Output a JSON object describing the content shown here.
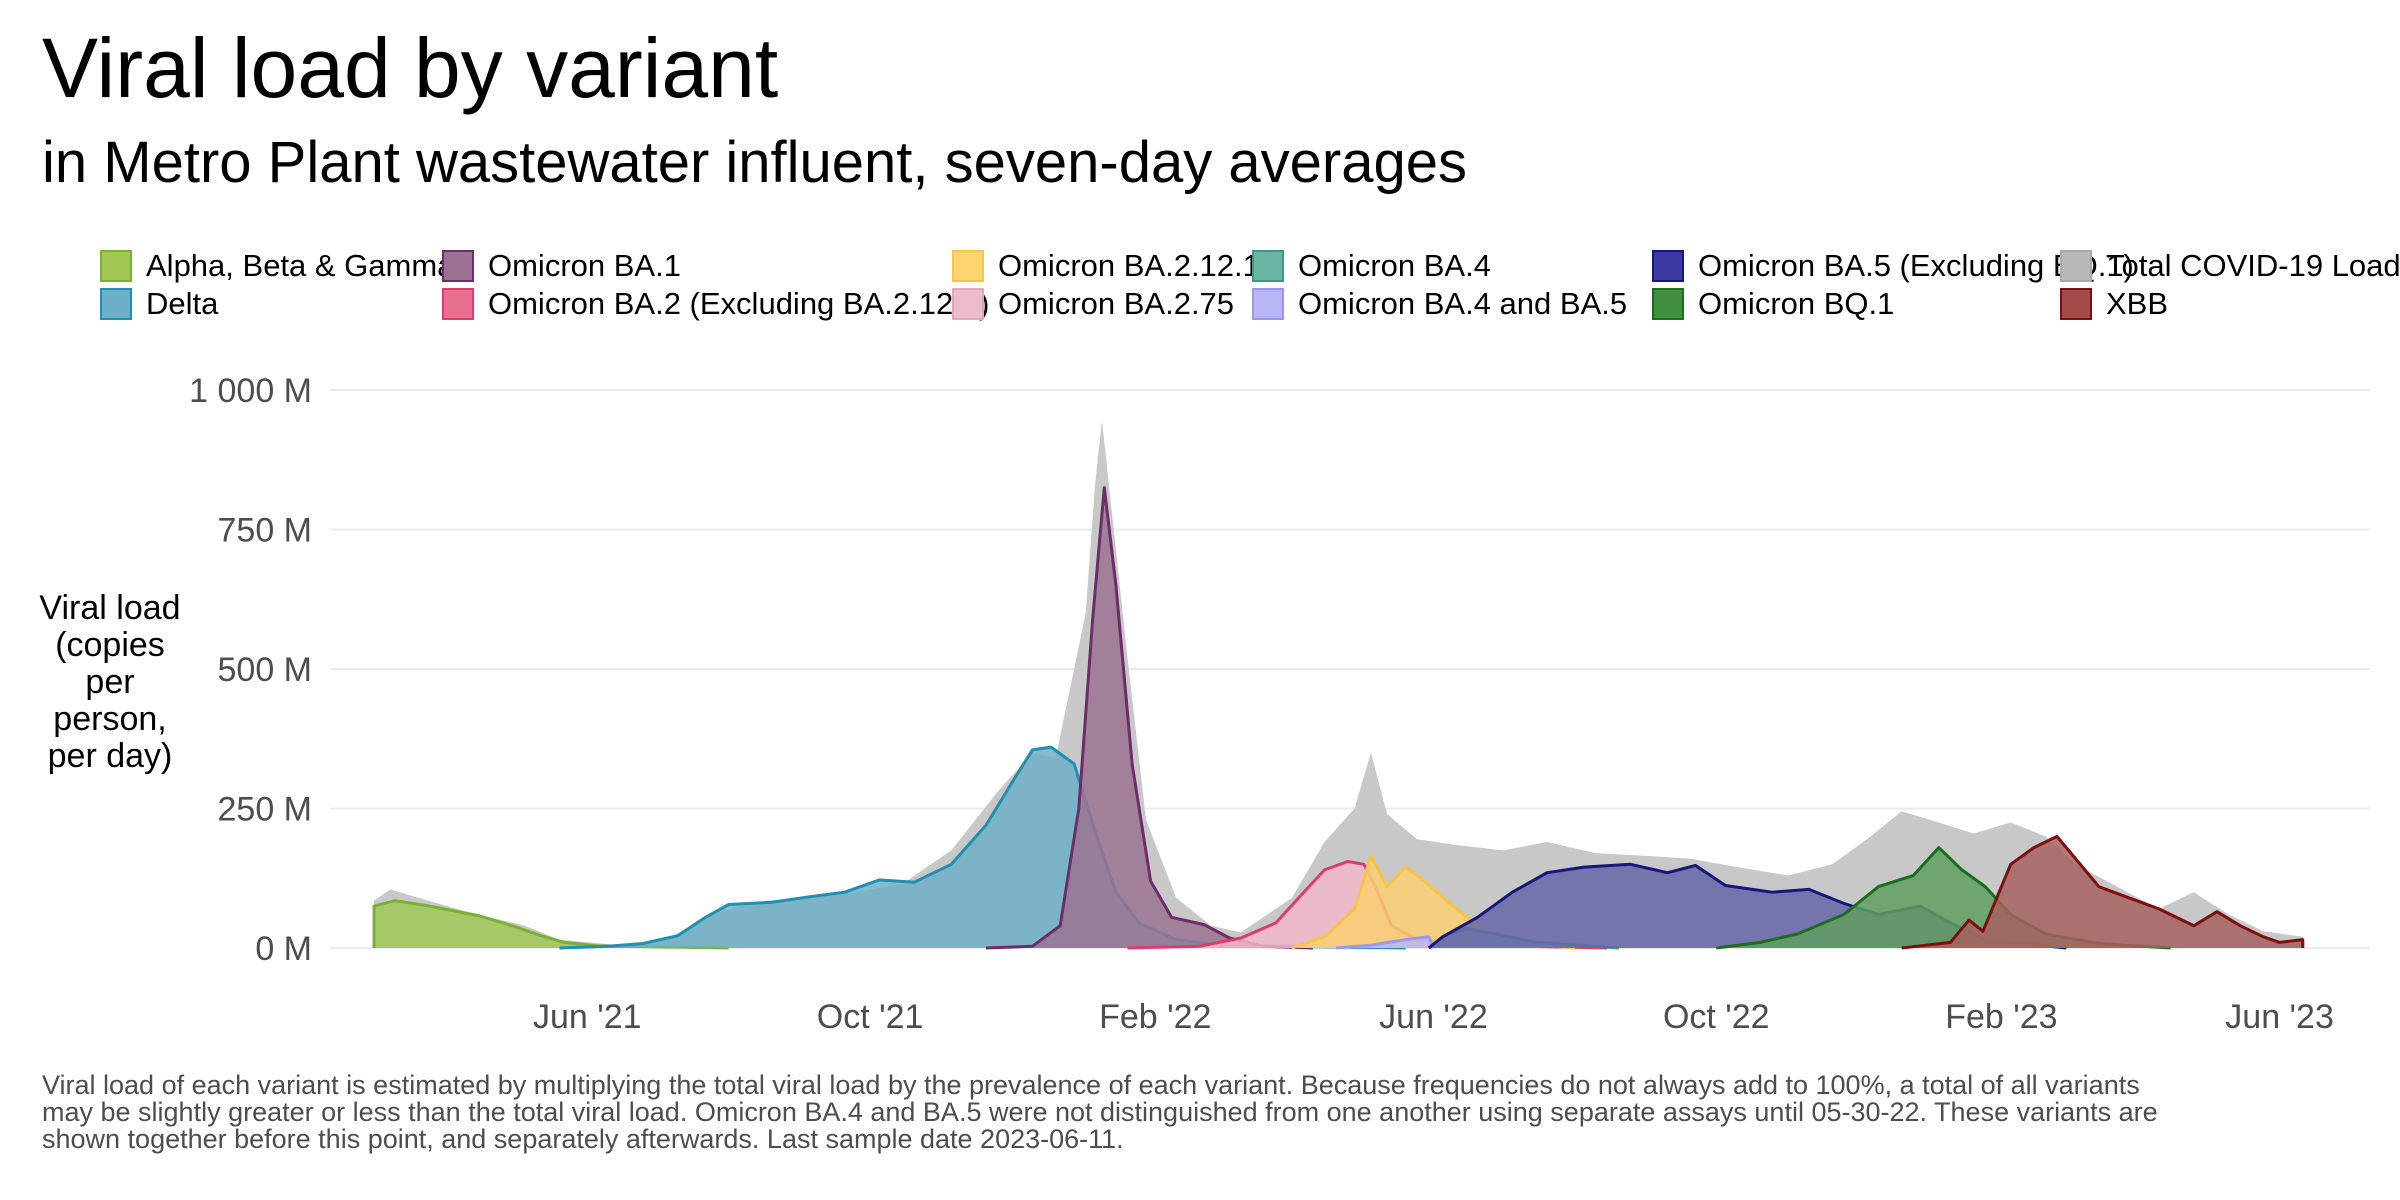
{
  "chart_data": {
    "type": "area",
    "title": "Viral load by variant",
    "subtitle": "in Metro Plant wastewater influent, seven-day averages",
    "ylabel": "Viral load\n(copies\nper\nperson,\nper day)",
    "xlabel": "",
    "ylim": [
      -40,
      1000
    ],
    "xlim": [
      "2021-02-10",
      "2023-07-10"
    ],
    "y_ticks": [
      0,
      250,
      500,
      750,
      1000
    ],
    "y_tick_labels": [
      "0 M",
      "250 M",
      "500 M",
      "750 M",
      "1 000 M"
    ],
    "x_ticks": [
      "2021-06-01",
      "2021-10-01",
      "2022-02-01",
      "2022-06-01",
      "2022-10-01",
      "2023-02-01",
      "2023-06-01"
    ],
    "x_tick_labels": [
      "Jun '21",
      "Oct '21",
      "Feb '22",
      "Jun '22",
      "Oct '22",
      "Feb '23",
      "Jun '23"
    ],
    "grid": true,
    "legend_position": "top",
    "series": [
      {
        "name": "Total COVID-19 Load",
        "color": "#c8c8c8",
        "stroke": "#c8c8c8",
        "points": [
          [
            "2021-03-01",
            85
          ],
          [
            "2021-03-08",
            105
          ],
          [
            "2021-03-20",
            90
          ],
          [
            "2021-04-10",
            65
          ],
          [
            "2021-05-05",
            40
          ],
          [
            "2021-05-20",
            15
          ],
          [
            "2021-06-15",
            5
          ],
          [
            "2021-07-05",
            15
          ],
          [
            "2021-07-25",
            60
          ],
          [
            "2021-08-10",
            80
          ],
          [
            "2021-09-01",
            92
          ],
          [
            "2021-09-25",
            100
          ],
          [
            "2021-10-15",
            115
          ],
          [
            "2021-11-05",
            175
          ],
          [
            "2021-11-25",
            280
          ],
          [
            "2021-12-10",
            350
          ],
          [
            "2021-12-20",
            340
          ],
          [
            "2022-01-02",
            600
          ],
          [
            "2022-01-06",
            830
          ],
          [
            "2022-01-09",
            945
          ],
          [
            "2022-01-12",
            830
          ],
          [
            "2022-01-20",
            520
          ],
          [
            "2022-01-28",
            230
          ],
          [
            "2022-02-10",
            90
          ],
          [
            "2022-02-25",
            40
          ],
          [
            "2022-03-10",
            28
          ],
          [
            "2022-04-01",
            90
          ],
          [
            "2022-04-15",
            190
          ],
          [
            "2022-04-28",
            250
          ],
          [
            "2022-05-05",
            350
          ],
          [
            "2022-05-12",
            240
          ],
          [
            "2022-05-25",
            195
          ],
          [
            "2022-06-10",
            185
          ],
          [
            "2022-07-01",
            175
          ],
          [
            "2022-07-20",
            190
          ],
          [
            "2022-08-10",
            170
          ],
          [
            "2022-09-01",
            165
          ],
          [
            "2022-09-20",
            160
          ],
          [
            "2022-10-10",
            145
          ],
          [
            "2022-11-01",
            130
          ],
          [
            "2022-11-20",
            150
          ],
          [
            "2022-12-05",
            195
          ],
          [
            "2022-12-20",
            245
          ],
          [
            "2023-01-05",
            225
          ],
          [
            "2023-01-20",
            205
          ],
          [
            "2023-02-05",
            225
          ],
          [
            "2023-02-20",
            200
          ],
          [
            "2023-03-05",
            150
          ],
          [
            "2023-03-25",
            105
          ],
          [
            "2023-04-10",
            70
          ],
          [
            "2023-04-25",
            100
          ],
          [
            "2023-05-10",
            60
          ],
          [
            "2023-05-25",
            30
          ],
          [
            "2023-06-11",
            20
          ]
        ]
      },
      {
        "name": "Alpha, Beta & Gamma",
        "color": "#a1c855",
        "stroke": "#79b135",
        "points": [
          [
            "2021-03-01",
            0
          ],
          [
            "2021-03-01",
            75
          ],
          [
            "2021-03-10",
            85
          ],
          [
            "2021-03-25",
            75
          ],
          [
            "2021-04-15",
            58
          ],
          [
            "2021-05-01",
            38
          ],
          [
            "2021-05-12",
            22
          ],
          [
            "2021-05-22",
            10
          ],
          [
            "2021-06-05",
            4
          ],
          [
            "2021-07-01",
            2
          ],
          [
            "2021-08-01",
            0
          ]
        ]
      },
      {
        "name": "Delta",
        "color": "#6fafc5",
        "stroke": "#1f8fb3",
        "points": [
          [
            "2021-05-20",
            0
          ],
          [
            "2021-06-10",
            3
          ],
          [
            "2021-06-25",
            8
          ],
          [
            "2021-07-10",
            22
          ],
          [
            "2021-07-22",
            55
          ],
          [
            "2021-08-01",
            78
          ],
          [
            "2021-08-20",
            82
          ],
          [
            "2021-09-05",
            92
          ],
          [
            "2021-09-20",
            100
          ],
          [
            "2021-10-05",
            122
          ],
          [
            "2021-10-20",
            118
          ],
          [
            "2021-11-05",
            150
          ],
          [
            "2021-11-20",
            220
          ],
          [
            "2021-12-01",
            295
          ],
          [
            "2021-12-10",
            355
          ],
          [
            "2021-12-18",
            360
          ],
          [
            "2021-12-28",
            330
          ],
          [
            "2022-01-06",
            210
          ],
          [
            "2022-01-15",
            100
          ],
          [
            "2022-01-25",
            45
          ],
          [
            "2022-02-10",
            15
          ],
          [
            "2022-03-01",
            5
          ],
          [
            "2022-04-15",
            2
          ],
          [
            "2022-05-20",
            0
          ]
        ]
      },
      {
        "name": "Omicron BA.1",
        "color": "#9b7392",
        "stroke": "#6c2d68",
        "points": [
          [
            "2021-11-20",
            0
          ],
          [
            "2021-12-10",
            3
          ],
          [
            "2021-12-22",
            40
          ],
          [
            "2021-12-30",
            250
          ],
          [
            "2022-01-05",
            590
          ],
          [
            "2022-01-10",
            825
          ],
          [
            "2022-01-15",
            650
          ],
          [
            "2022-01-22",
            330
          ],
          [
            "2022-01-30",
            120
          ],
          [
            "2022-02-08",
            55
          ],
          [
            "2022-02-22",
            42
          ],
          [
            "2022-03-05",
            18
          ],
          [
            "2022-03-20",
            3
          ],
          [
            "2022-04-10",
            0
          ]
        ]
      },
      {
        "name": "Omicron BA.2 (Excluding BA.2.12.1)",
        "color": "#f0b7c9",
        "stroke": "#dc3b6c",
        "points": [
          [
            "2022-01-20",
            0
          ],
          [
            "2022-02-20",
            3
          ],
          [
            "2022-03-10",
            18
          ],
          [
            "2022-03-25",
            45
          ],
          [
            "2022-04-05",
            95
          ],
          [
            "2022-04-15",
            140
          ],
          [
            "2022-04-25",
            155
          ],
          [
            "2022-05-02",
            150
          ],
          [
            "2022-05-07",
            110
          ],
          [
            "2022-05-14",
            40
          ],
          [
            "2022-05-25",
            15
          ],
          [
            "2022-06-20",
            5
          ],
          [
            "2022-08-15",
            0
          ]
        ]
      },
      {
        "name": "Omicron BA.2.12.1",
        "color": "#f9cf71",
        "stroke": "#f7c447",
        "points": [
          [
            "2022-04-01",
            0
          ],
          [
            "2022-04-15",
            20
          ],
          [
            "2022-04-28",
            70
          ],
          [
            "2022-05-05",
            165
          ],
          [
            "2022-05-12",
            110
          ],
          [
            "2022-05-20",
            145
          ],
          [
            "2022-05-28",
            120
          ],
          [
            "2022-06-08",
            80
          ],
          [
            "2022-06-20",
            40
          ],
          [
            "2022-07-05",
            10
          ],
          [
            "2022-08-01",
            0
          ]
        ]
      },
      {
        "name": "Omicron BA.4",
        "color": "#7dbfb0",
        "stroke": "#3c9885",
        "points": [
          [
            "2022-05-30",
            0
          ],
          [
            "2022-06-05",
            20
          ],
          [
            "2022-06-15",
            35
          ],
          [
            "2022-06-28",
            25
          ],
          [
            "2022-07-15",
            10
          ],
          [
            "2022-08-20",
            0
          ]
        ]
      },
      {
        "name": "Omicron BA.4 and BA.5",
        "color": "#b9b6f5",
        "stroke": "#9b96f0",
        "points": [
          [
            "2022-04-20",
            0
          ],
          [
            "2022-05-05",
            5
          ],
          [
            "2022-05-20",
            15
          ],
          [
            "2022-05-30",
            20
          ],
          [
            "2022-06-01",
            0
          ]
        ]
      },
      {
        "name": "Omicron BA.5 (Excluding BQ.1)",
        "color": "#6665a8",
        "stroke": "#16167d",
        "points": [
          [
            "2022-05-30",
            0
          ],
          [
            "2022-06-05",
            20
          ],
          [
            "2022-06-20",
            55
          ],
          [
            "2022-07-05",
            100
          ],
          [
            "2022-07-20",
            135
          ],
          [
            "2022-08-05",
            145
          ],
          [
            "2022-08-25",
            150
          ],
          [
            "2022-09-10",
            135
          ],
          [
            "2022-09-22",
            148
          ],
          [
            "2022-10-05",
            112
          ],
          [
            "2022-10-25",
            100
          ],
          [
            "2022-11-10",
            105
          ],
          [
            "2022-11-25",
            80
          ],
          [
            "2022-12-10",
            60
          ],
          [
            "2022-12-28",
            75
          ],
          [
            "2023-01-10",
            45
          ],
          [
            "2023-01-25",
            15
          ],
          [
            "2023-03-01",
            0
          ]
        ]
      },
      {
        "name": "Omicron BQ.1",
        "color": "#5f9f5f",
        "stroke": "#1b6e1b",
        "points": [
          [
            "2022-10-01",
            0
          ],
          [
            "2022-10-20",
            10
          ],
          [
            "2022-11-05",
            25
          ],
          [
            "2022-11-25",
            60
          ],
          [
            "2022-12-10",
            110
          ],
          [
            "2022-12-25",
            130
          ],
          [
            "2023-01-05",
            180
          ],
          [
            "2023-01-15",
            140
          ],
          [
            "2023-01-25",
            110
          ],
          [
            "2023-02-05",
            60
          ],
          [
            "2023-02-20",
            25
          ],
          [
            "2023-03-15",
            8
          ],
          [
            "2023-04-15",
            0
          ]
        ]
      },
      {
        "name": "XBB",
        "color": "#a66060",
        "stroke": "#7d0f0f",
        "points": [
          [
            "2022-12-20",
            0
          ],
          [
            "2023-01-10",
            10
          ],
          [
            "2023-01-18",
            50
          ],
          [
            "2023-01-24",
            30
          ],
          [
            "2023-01-30",
            90
          ],
          [
            "2023-02-05",
            150
          ],
          [
            "2023-02-15",
            180
          ],
          [
            "2023-02-25",
            200
          ],
          [
            "2023-03-05",
            160
          ],
          [
            "2023-03-15",
            110
          ],
          [
            "2023-03-28",
            90
          ],
          [
            "2023-04-10",
            70
          ],
          [
            "2023-04-25",
            40
          ],
          [
            "2023-05-05",
            65
          ],
          [
            "2023-05-15",
            40
          ],
          [
            "2023-05-25",
            20
          ],
          [
            "2023-06-01",
            10
          ],
          [
            "2023-06-11",
            15
          ],
          [
            "2023-06-11",
            0
          ]
        ]
      }
    ]
  },
  "legend": [
    {
      "label": "Alpha, Beta & Gamma",
      "color": "#a1c855",
      "stroke": "#79b135"
    },
    {
      "label": "Delta",
      "color": "#6fafc5",
      "stroke": "#1f8fb3"
    },
    {
      "label": "Omicron BA.1",
      "color": "#9b7392",
      "stroke": "#6c2d68"
    },
    {
      "label": "Omicron BA.2 (Excluding BA.2.12.1)",
      "color": "#e8708f",
      "stroke": "#dc3b6c"
    },
    {
      "label": "Omicron BA.2.12.1",
      "color": "#fcd572",
      "stroke": "#f7c447"
    },
    {
      "label": "Omicron BA.2.75",
      "color": "#ebbdcc",
      "stroke": "#e0a7bb"
    },
    {
      "label": "Omicron BA.4",
      "color": "#6cb5a4",
      "stroke": "#3c9885"
    },
    {
      "label": "Omicron BA.4 and BA.5",
      "color": "#b9b6f5",
      "stroke": "#9b96f0"
    },
    {
      "label": "Omicron BA.5 (Excluding BQ.1)",
      "color": "#3b3aa3",
      "stroke": "#16167d"
    },
    {
      "label": "Omicron BQ.1",
      "color": "#3f8f3f",
      "stroke": "#1b6e1b"
    },
    {
      "label": "Total COVID-19 Load",
      "color": "#b9b9b9",
      "stroke": "#a9a9a9"
    },
    {
      "label": "XBB",
      "color": "#a34b4b",
      "stroke": "#7d0f0f"
    }
  ],
  "footnote": "Viral load of each variant is estimated by multiplying the total viral load by the prevalence of each variant. Because frequencies do not always add to 100%, a total of all variants may be slightly greater or less than the total viral load. Omicron BA.4 and BA.5 were not distinguished from one another using separate assays until 05-30-22. These variants are shown together before this point, and separately afterwards. Last sample date 2023-06-11."
}
